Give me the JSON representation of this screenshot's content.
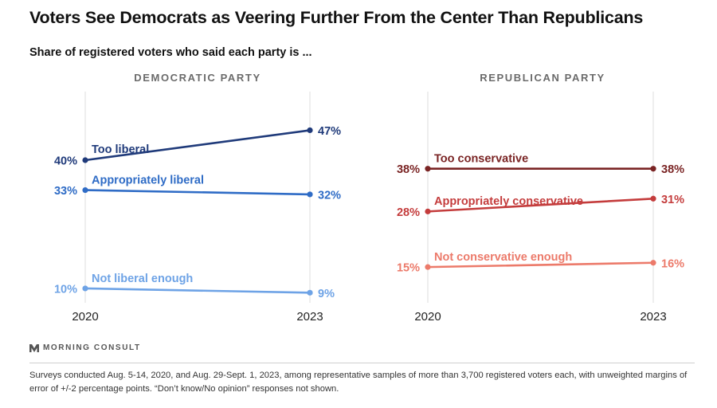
{
  "title": "Voters See Democrats as Veering Further From the Center Than Republicans",
  "subtitle": "Share of registered voters who said each party is ...",
  "brand": "MORNING CONSULT",
  "footnote": "Surveys conducted Aug. 5-14, 2020, and Aug. 29-Sept. 1, 2023, among representative samples of more than 3,700 registered voters each, with unweighted margins of error of +/-2 percentage points. “Don’t know/No opinion” responses not shown.",
  "colors": {
    "dem_dark": "#1f3a7a",
    "dem_mid": "#2f6cc6",
    "dem_light": "#6ea3e6",
    "rep_dark": "#7a2424",
    "rep_mid": "#c43c3c",
    "rep_light": "#ec7a6a"
  },
  "chart_data": [
    {
      "type": "line",
      "title": "DEMOCRATIC PARTY",
      "x": [
        "2020",
        "2023"
      ],
      "ylim": [
        0,
        60
      ],
      "series": [
        {
          "name": "Too liberal",
          "values": [
            40,
            47
          ],
          "labels": [
            "40%",
            "47%"
          ],
          "color": "#1f3a7a"
        },
        {
          "name": "Appropriately liberal",
          "values": [
            33,
            32
          ],
          "labels": [
            "33%",
            "32%"
          ],
          "color": "#2f6cc6"
        },
        {
          "name": "Not liberal enough",
          "values": [
            10,
            9
          ],
          "labels": [
            "10%",
            "9%"
          ],
          "color": "#6ea3e6"
        }
      ]
    },
    {
      "type": "line",
      "title": "REPUBLICAN PARTY",
      "x": [
        "2020",
        "2023"
      ],
      "ylim": [
        0,
        60
      ],
      "series": [
        {
          "name": "Too conservative",
          "values": [
            38,
            38
          ],
          "labels": [
            "38%",
            "38%"
          ],
          "color": "#7a2424"
        },
        {
          "name": "Appropriately conservative",
          "values": [
            28,
            31
          ],
          "labels": [
            "28%",
            "31%"
          ],
          "color": "#c43c3c"
        },
        {
          "name": "Not conservative enough",
          "values": [
            15,
            16
          ],
          "labels": [
            "15%",
            "16%"
          ],
          "color": "#ec7a6a"
        }
      ]
    }
  ]
}
